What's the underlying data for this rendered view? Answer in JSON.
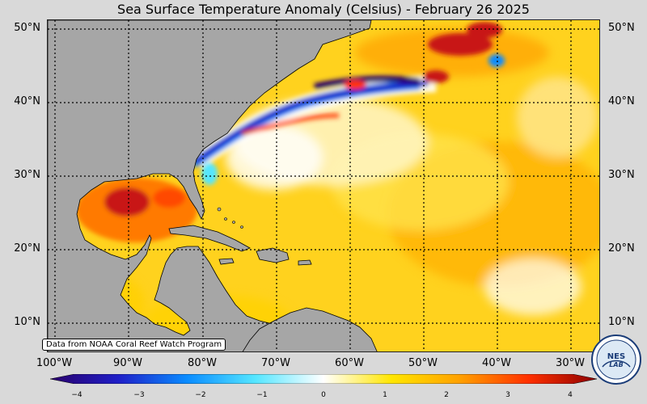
{
  "title": "Sea Surface Temperature Anomaly (Celsius) - February 26 2025",
  "credit": "Data from NOAA Coral Reef Watch Program",
  "logo_text": "NESDIS LAB",
  "lat_labels": [
    "50°N",
    "40°N",
    "30°N",
    "20°N",
    "10°N"
  ],
  "lon_labels": [
    "100°W",
    "90°W",
    "80°W",
    "70°W",
    "60°W",
    "50°W",
    "40°W",
    "30°W"
  ],
  "colorbar": {
    "ticks": [
      "−4",
      "−3",
      "−2",
      "−1",
      "0",
      "1",
      "2",
      "3",
      "4"
    ],
    "min": -4,
    "max": 4,
    "stops": [
      "#2a006b",
      "#1f1fc8",
      "#0a8cff",
      "#55e6ff",
      "#ffffff",
      "#ffe600",
      "#ffa000",
      "#ff3000",
      "#8c0000"
    ]
  },
  "colors": {
    "land": "#a6a6a6",
    "ocean_base": "#ffd21e",
    "gridline": "#000000"
  }
}
